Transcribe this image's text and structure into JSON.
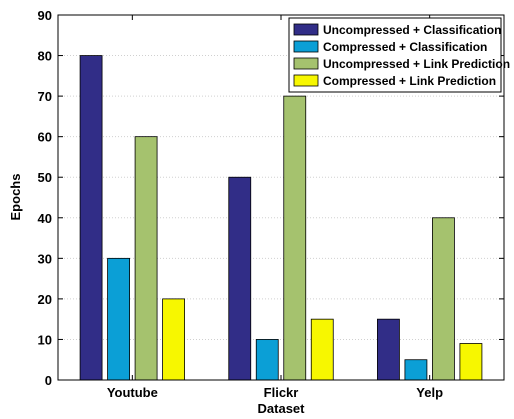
{
  "chart_data": {
    "type": "bar",
    "title": "",
    "xlabel": "Dataset",
    "ylabel": "Epochs",
    "categories": [
      "Youtube",
      "Flickr",
      "Yelp"
    ],
    "series": [
      {
        "name": "Uncompressed + Classification",
        "values": [
          80,
          50,
          15
        ],
        "color": "#312d87"
      },
      {
        "name": "Compressed + Classification",
        "values": [
          30,
          10,
          5
        ],
        "color": "#0b9fd6"
      },
      {
        "name": "Uncompressed + Link Prediction",
        "values": [
          60,
          70,
          40
        ],
        "color": "#a5c26e"
      },
      {
        "name": "Compressed + Link Prediction",
        "values": [
          20,
          15,
          9
        ],
        "color": "#f7f700"
      }
    ],
    "ylim": [
      0,
      90
    ],
    "yticks": [
      0,
      10,
      20,
      30,
      40,
      50,
      60,
      70,
      80,
      90
    ],
    "grid": true,
    "legend_position": "top-right"
  }
}
